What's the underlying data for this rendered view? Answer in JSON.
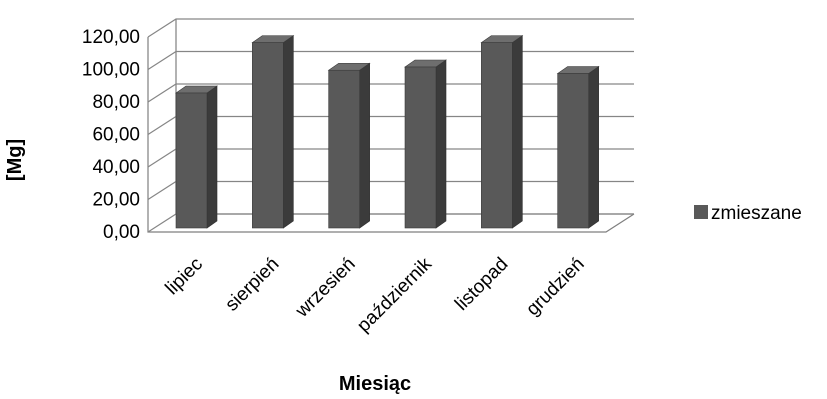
{
  "chart_data": {
    "type": "bar",
    "style": "3d-column",
    "categories": [
      "lipiec",
      "sierpień",
      "wrzesień",
      "październik",
      "listopad",
      "grudzień"
    ],
    "series": [
      {
        "name": "zmieszane",
        "values": [
          88,
          119,
          102,
          104,
          119,
          100
        ],
        "color": "#595959"
      }
    ],
    "xlabel": "Miesiąc",
    "ylabel": "[Mg]",
    "ylim": [
      0,
      120
    ],
    "yticks": [
      "0,00",
      "20,00",
      "40,00",
      "60,00",
      "80,00",
      "100,00",
      "120,00"
    ],
    "grid": true,
    "legend_position": "right"
  }
}
